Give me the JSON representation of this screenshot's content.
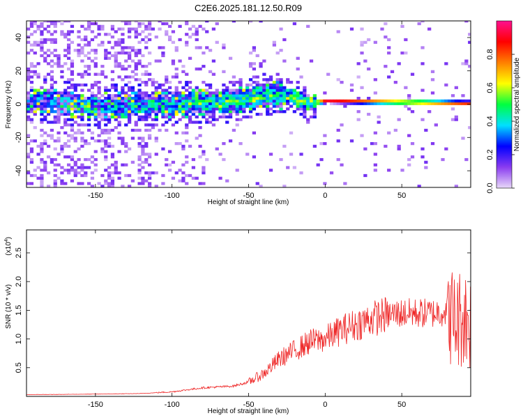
{
  "title": "C2E6.2025.181.12.50.R09",
  "chart_data": [
    {
      "type": "heatmap",
      "xlabel": "Height of straight line (km)",
      "ylabel": "Frequency (Hz)",
      "xlim": [
        -195,
        95
      ],
      "ylim": [
        -50,
        50
      ],
      "xticks": [
        -150,
        -100,
        -50,
        0,
        50
      ],
      "yticks": [
        -40,
        -20,
        0,
        20,
        40
      ],
      "colorbar": {
        "label": "Normalized spectral amplitude",
        "range": [
          0.0,
          1.0
        ],
        "ticks": [
          0.0,
          0.2,
          0.4,
          0.6,
          0.8
        ],
        "tick_labels": [
          "0.0",
          "0.2",
          "0.4",
          "0.6",
          "0.8"
        ],
        "colors": [
          "#e8d8f8",
          "#8a3cf0",
          "#0000ff",
          "#00e0ff",
          "#00ff40",
          "#ffff00",
          "#ff8000",
          "#ff0000",
          "#ff1090"
        ]
      },
      "band_center": [
        {
          "x": -195,
          "y": 2
        },
        {
          "x": -150,
          "y": -2
        },
        {
          "x": -100,
          "y": -1
        },
        {
          "x": -60,
          "y": 1
        },
        {
          "x": -40,
          "y": 5
        },
        {
          "x": -25,
          "y": 4
        },
        {
          "x": -10,
          "y": 0
        },
        {
          "x": 0,
          "y": 1
        },
        {
          "x": 90,
          "y": 0
        }
      ]
    },
    {
      "type": "line",
      "xlabel": "Height of straight line (km)",
      "ylabel": "SNR (10 * v/v)",
      "multiplier_label": "(x10",
      "multiplier_exp": "4",
      "multiplier_close": ")",
      "xlim": [
        -195,
        95
      ],
      "ylim": [
        0,
        2.9
      ],
      "xticks": [
        -150,
        -100,
        -50,
        0,
        50
      ],
      "yticks": [
        0.5,
        1.0,
        1.5,
        2.0,
        2.5
      ],
      "ytick_labels": [
        "0.5",
        "1.0",
        "1.5",
        "2.0",
        "2.5"
      ],
      "series_color": "#ee2222",
      "series": [
        {
          "x": [
            -195,
            -150,
            -120,
            -100,
            -80,
            -60,
            -50,
            -40,
            -30,
            -20,
            -10,
            0,
            10,
            20,
            30,
            40,
            50,
            60,
            70,
            80,
            85,
            90,
            95
          ],
          "y": [
            0.03,
            0.04,
            0.05,
            0.08,
            0.15,
            0.18,
            0.25,
            0.4,
            0.65,
            0.8,
            0.95,
            1.0,
            1.15,
            1.25,
            1.35,
            1.42,
            1.45,
            1.45,
            1.45,
            1.5,
            1.3,
            1.4,
            1.3
          ]
        }
      ]
    }
  ]
}
